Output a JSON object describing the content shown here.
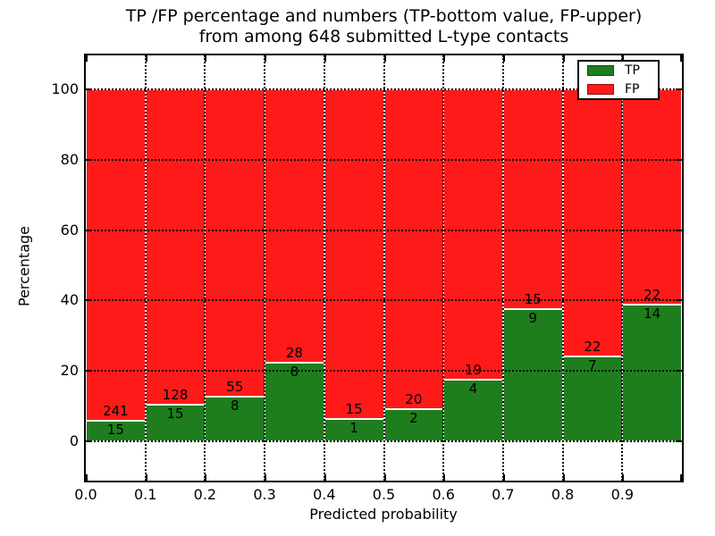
{
  "figure": {
    "title_line1": "TP /FP percentage and numbers (TP-bottom value, FP-upper)",
    "title_line2": "from among 648 submitted L-type contacts"
  },
  "chart_data": {
    "type": "bar",
    "stacked": true,
    "normalized_to_percent": 100,
    "title": "TP /FP percentage and numbers (TP-bottom value, FP-upper) from among 648 submitted L-type contacts",
    "total_contacts": 648,
    "xlabel": "Predicted probability",
    "ylabel": "Percentage",
    "categories": [
      "0.0",
      "0.1",
      "0.2",
      "0.3",
      "0.4",
      "0.5",
      "0.6",
      "0.7",
      "0.8",
      "0.9"
    ],
    "bin_width": 0.1,
    "series": [
      {
        "name": "TP",
        "color": "#1e7e1e",
        "counts": [
          15,
          15,
          8,
          8,
          1,
          2,
          4,
          9,
          7,
          14
        ]
      },
      {
        "name": "FP",
        "color": "#ff1a1a",
        "counts": [
          241,
          128,
          55,
          28,
          15,
          20,
          19,
          15,
          22,
          22
        ]
      }
    ],
    "tp_percent": [
      5.86,
      10.49,
      12.7,
      22.22,
      6.25,
      9.09,
      17.39,
      37.5,
      24.14,
      38.89
    ],
    "yticks": [
      "0",
      "20",
      "40",
      "60",
      "80",
      "100"
    ],
    "ytick_values": [
      0,
      20,
      40,
      60,
      80,
      100
    ],
    "xticks": [
      "0.0",
      "0.1",
      "0.2",
      "0.3",
      "0.4",
      "0.5",
      "0.6",
      "0.7",
      "0.8",
      "0.9"
    ],
    "xlim": [
      0.0,
      1.0
    ],
    "grid": "dotted black, on",
    "legend": {
      "position": "upper-right",
      "entries": [
        {
          "label": "TP",
          "color": "#1e7e1e"
        },
        {
          "label": "FP",
          "color": "#ff1a1a"
        }
      ]
    }
  }
}
